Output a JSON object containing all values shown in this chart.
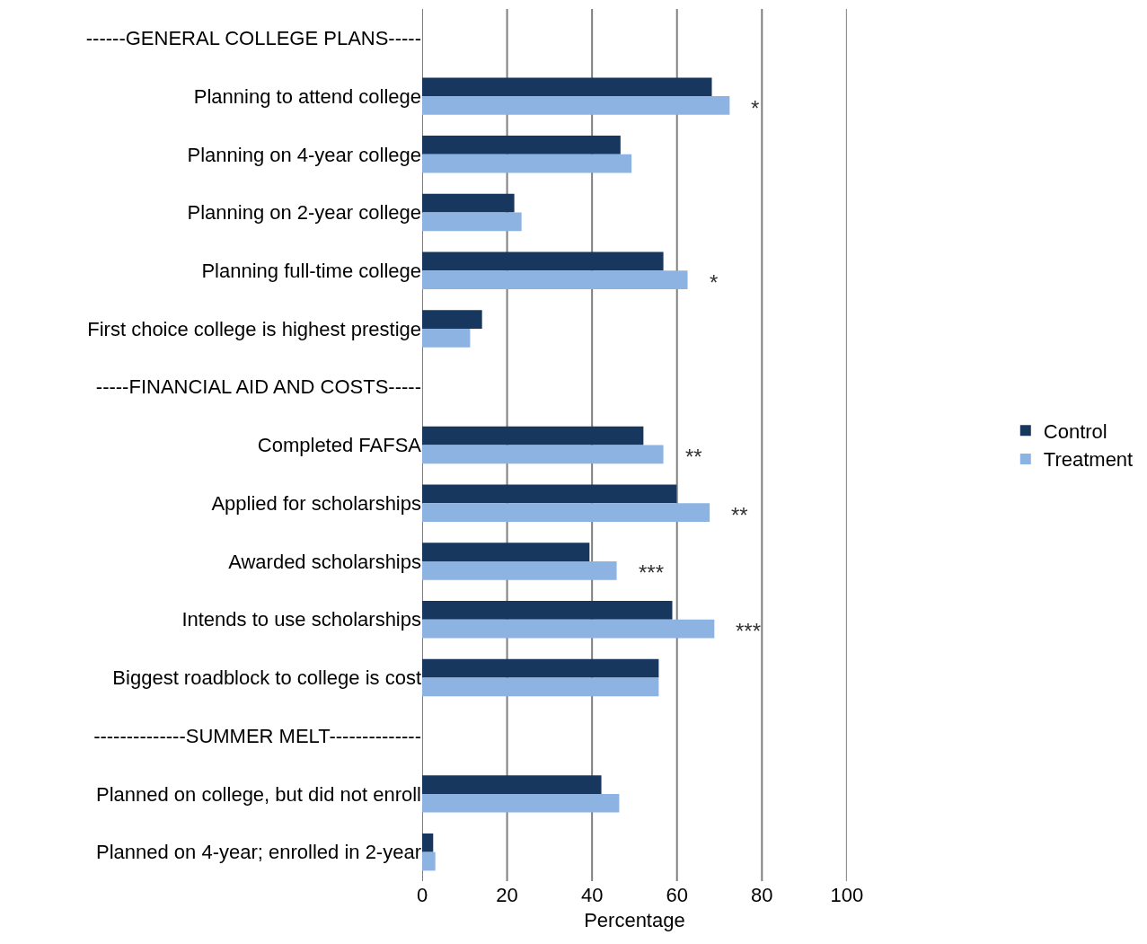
{
  "chart_data": {
    "type": "bar",
    "orientation": "horizontal",
    "xlabel": "Percentage",
    "categories": [
      "------GENERAL COLLEGE PLANS-----",
      "Planning to attend college",
      "Planning on 4-year college",
      "Planning on 2-year college",
      "Planning full-time college",
      "First choice college is highest prestige",
      "-----FINANCIAL AID AND COSTS-----",
      "Completed FAFSA",
      "Applied for scholarships",
      "Awarded scholarships",
      "Intends to use scholarships",
      "Biggest roadblock to college is cost",
      "--------------SUMMER MELT--------------",
      "Planned on college, but did not enroll",
      "Planned on 4-year; enrolled in 2-year"
    ],
    "series": [
      {
        "name": "Control",
        "color": "#17375e",
        "values": [
          null,
          68.2,
          46.7,
          21.7,
          56.8,
          14.1,
          null,
          52.1,
          59.9,
          39.4,
          58.9,
          55.7,
          null,
          42.2,
          2.6
        ]
      },
      {
        "name": "Treatment",
        "color": "#8db3e2",
        "values": [
          null,
          72.4,
          49.3,
          23.4,
          62.5,
          11.3,
          null,
          56.8,
          67.7,
          45.8,
          68.8,
          55.7,
          null,
          46.4,
          3.1
        ]
      }
    ],
    "xlim": [
      0,
      100
    ],
    "xticks": [
      0,
      20,
      40,
      60,
      80,
      100
    ],
    "grid": "x",
    "legend": "right",
    "annotations": [
      {
        "text": "*",
        "x": 72.4,
        "y": "Planning to attend college"
      },
      {
        "text": "*",
        "x": 62.5,
        "y": "Planning full-time college"
      },
      {
        "text": "**",
        "x": 56.8,
        "y": "Completed FAFSA"
      },
      {
        "text": "**",
        "x": 67.7,
        "y": "Applied for scholarships"
      },
      {
        "text": "***",
        "x": 45.8,
        "y": "Awarded scholarships"
      },
      {
        "text": "***",
        "x": 68.8,
        "y": "Intends to use scholarships"
      }
    ]
  }
}
